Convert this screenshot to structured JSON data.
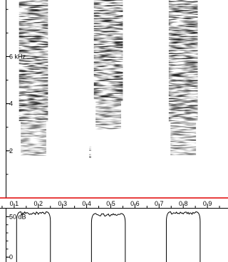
{
  "chart_data": [
    {
      "type": "heatmap",
      "name": "spectrogram",
      "xlabel": "",
      "ylabel": "",
      "xlim": [
        0,
        1.0
      ],
      "ylim": [
        0,
        8.4
      ],
      "x_ticks": [
        {
          "value": 0.1,
          "label": "0.1"
        },
        {
          "value": 0.2,
          "label": "0.2"
        },
        {
          "value": 0.3,
          "label": "0.3"
        },
        {
          "value": 0.4,
          "label": "0.4"
        },
        {
          "value": 0.5,
          "label": "0.5"
        },
        {
          "value": 0.6,
          "label": "0.6"
        },
        {
          "value": 0.7,
          "label": "0.7"
        },
        {
          "value": 0.8,
          "label": "0.8"
        },
        {
          "value": 0.9,
          "label": "0.9"
        }
      ],
      "y_ticks": [
        {
          "value": 2,
          "label": "2"
        },
        {
          "value": 4,
          "label": "4"
        },
        {
          "value": 6,
          "label": "6 kHz"
        }
      ],
      "bursts": [
        {
          "t_start": 0.12,
          "t_end": 0.24,
          "f_low": 1.8,
          "f_high": 8.4
        },
        {
          "t_start": 0.43,
          "t_end": 0.55,
          "f_low": 2.9,
          "f_high": 8.4
        },
        {
          "t_start": 0.74,
          "t_end": 0.86,
          "f_low": 1.8,
          "f_high": 8.4
        }
      ],
      "stray_marks": [
        {
          "t": 0.41,
          "f_low": 1.7,
          "f_high": 2.2
        }
      ],
      "colors": {
        "intensity": "#000000",
        "background": "#ffffff",
        "baseline": "#e00000"
      }
    },
    {
      "type": "area",
      "name": "amplitude-envelope",
      "ylabel": "",
      "ylim": [
        -6,
        60
      ],
      "y_ticks": [
        {
          "value": 50,
          "label": "50 dB"
        },
        {
          "value": 0,
          "label": "0"
        }
      ],
      "segments": [
        {
          "t_start": 0.11,
          "t_end": 0.25,
          "level_db": 56
        },
        {
          "t_start": 0.42,
          "t_end": 0.56,
          "level_db": 54
        },
        {
          "t_start": 0.73,
          "t_end": 0.87,
          "level_db": 56
        }
      ]
    }
  ]
}
